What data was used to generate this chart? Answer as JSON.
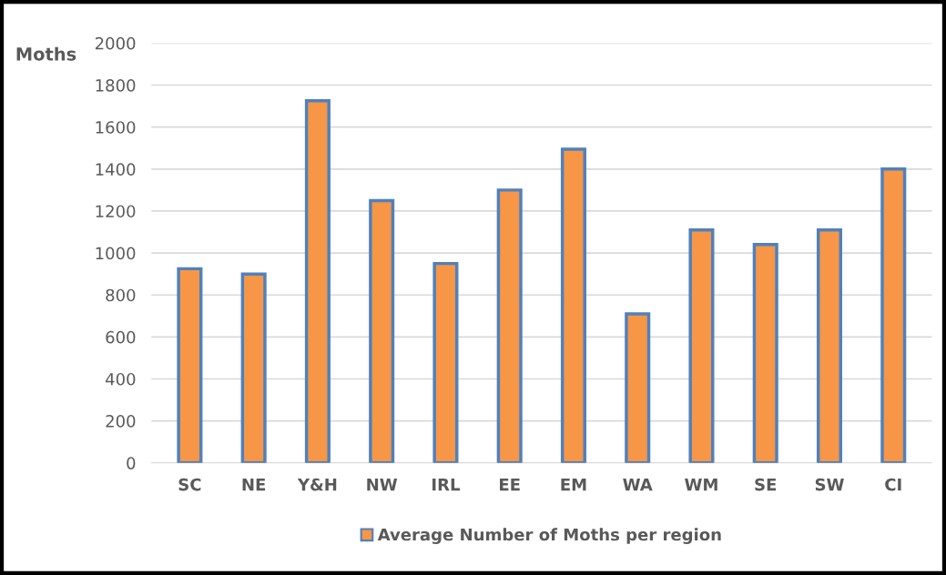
{
  "chart_data": {
    "type": "bar",
    "ylabel": "Moths",
    "categories": [
      "SC",
      "NE",
      "Y&H",
      "NW",
      "IRL",
      "EE",
      "EM",
      "WA",
      "WM",
      "SE",
      "SW",
      "CI"
    ],
    "series": [
      {
        "name": "Average Number of Moths per region",
        "color": "#f79646",
        "values": [
          925,
          900,
          1725,
          1250,
          950,
          1300,
          1495,
          710,
          1110,
          1040,
          1110,
          1400
        ]
      }
    ],
    "ylim": [
      0,
      2000
    ],
    "yticks": [
      0,
      200,
      400,
      600,
      800,
      1000,
      1200,
      1400,
      1600,
      1800,
      2000
    ],
    "grid": "y",
    "legend": "bottom"
  }
}
